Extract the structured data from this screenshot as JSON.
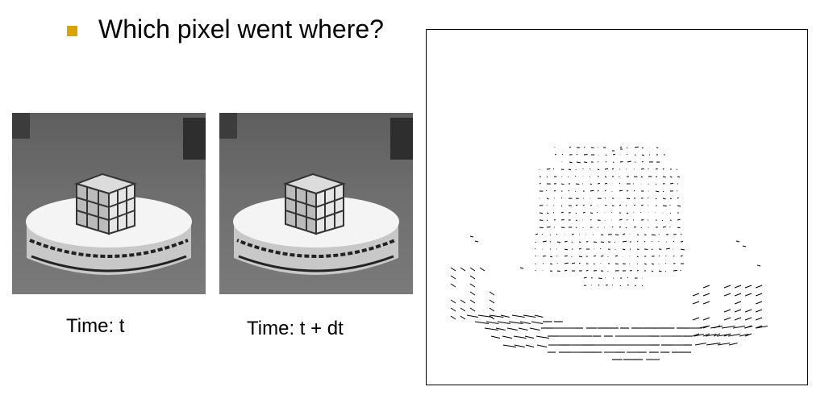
{
  "slide": {
    "bullet_color": "#d9a400",
    "heading": "Which pixel went where?"
  },
  "frames": [
    {
      "caption": "Time: t",
      "image": "rubiks-cube-on-turntable-frame"
    },
    {
      "caption": "Time: t + dt",
      "image": "rubiks-cube-on-turntable-frame-shifted"
    }
  ],
  "flow_field": {
    "image": "optical-flow-vector-field",
    "arrow_color": "#000000"
  }
}
